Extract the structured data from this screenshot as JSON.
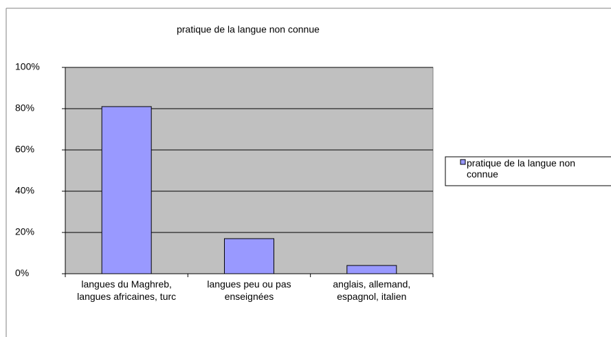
{
  "chart_data": {
    "type": "bar",
    "title": "pratique de la langue non connue",
    "categories": [
      "langues du Maghreb, langues africaines, turc",
      "langues peu ou pas enseignées",
      "anglais, allemand, espagnol, italien"
    ],
    "series": [
      {
        "name": "pratique de la langue non connue",
        "color": "#9999ff",
        "values": [
          81,
          17,
          4
        ]
      }
    ],
    "ylim": [
      0,
      100
    ],
    "yticks": [
      {
        "value": 0,
        "label": "0%"
      },
      {
        "value": 20,
        "label": "20%"
      },
      {
        "value": 40,
        "label": "40%"
      },
      {
        "value": 60,
        "label": "60%"
      },
      {
        "value": 80,
        "label": "80%"
      },
      {
        "value": 100,
        "label": "100%"
      }
    ],
    "grid": true,
    "legend": "right"
  }
}
